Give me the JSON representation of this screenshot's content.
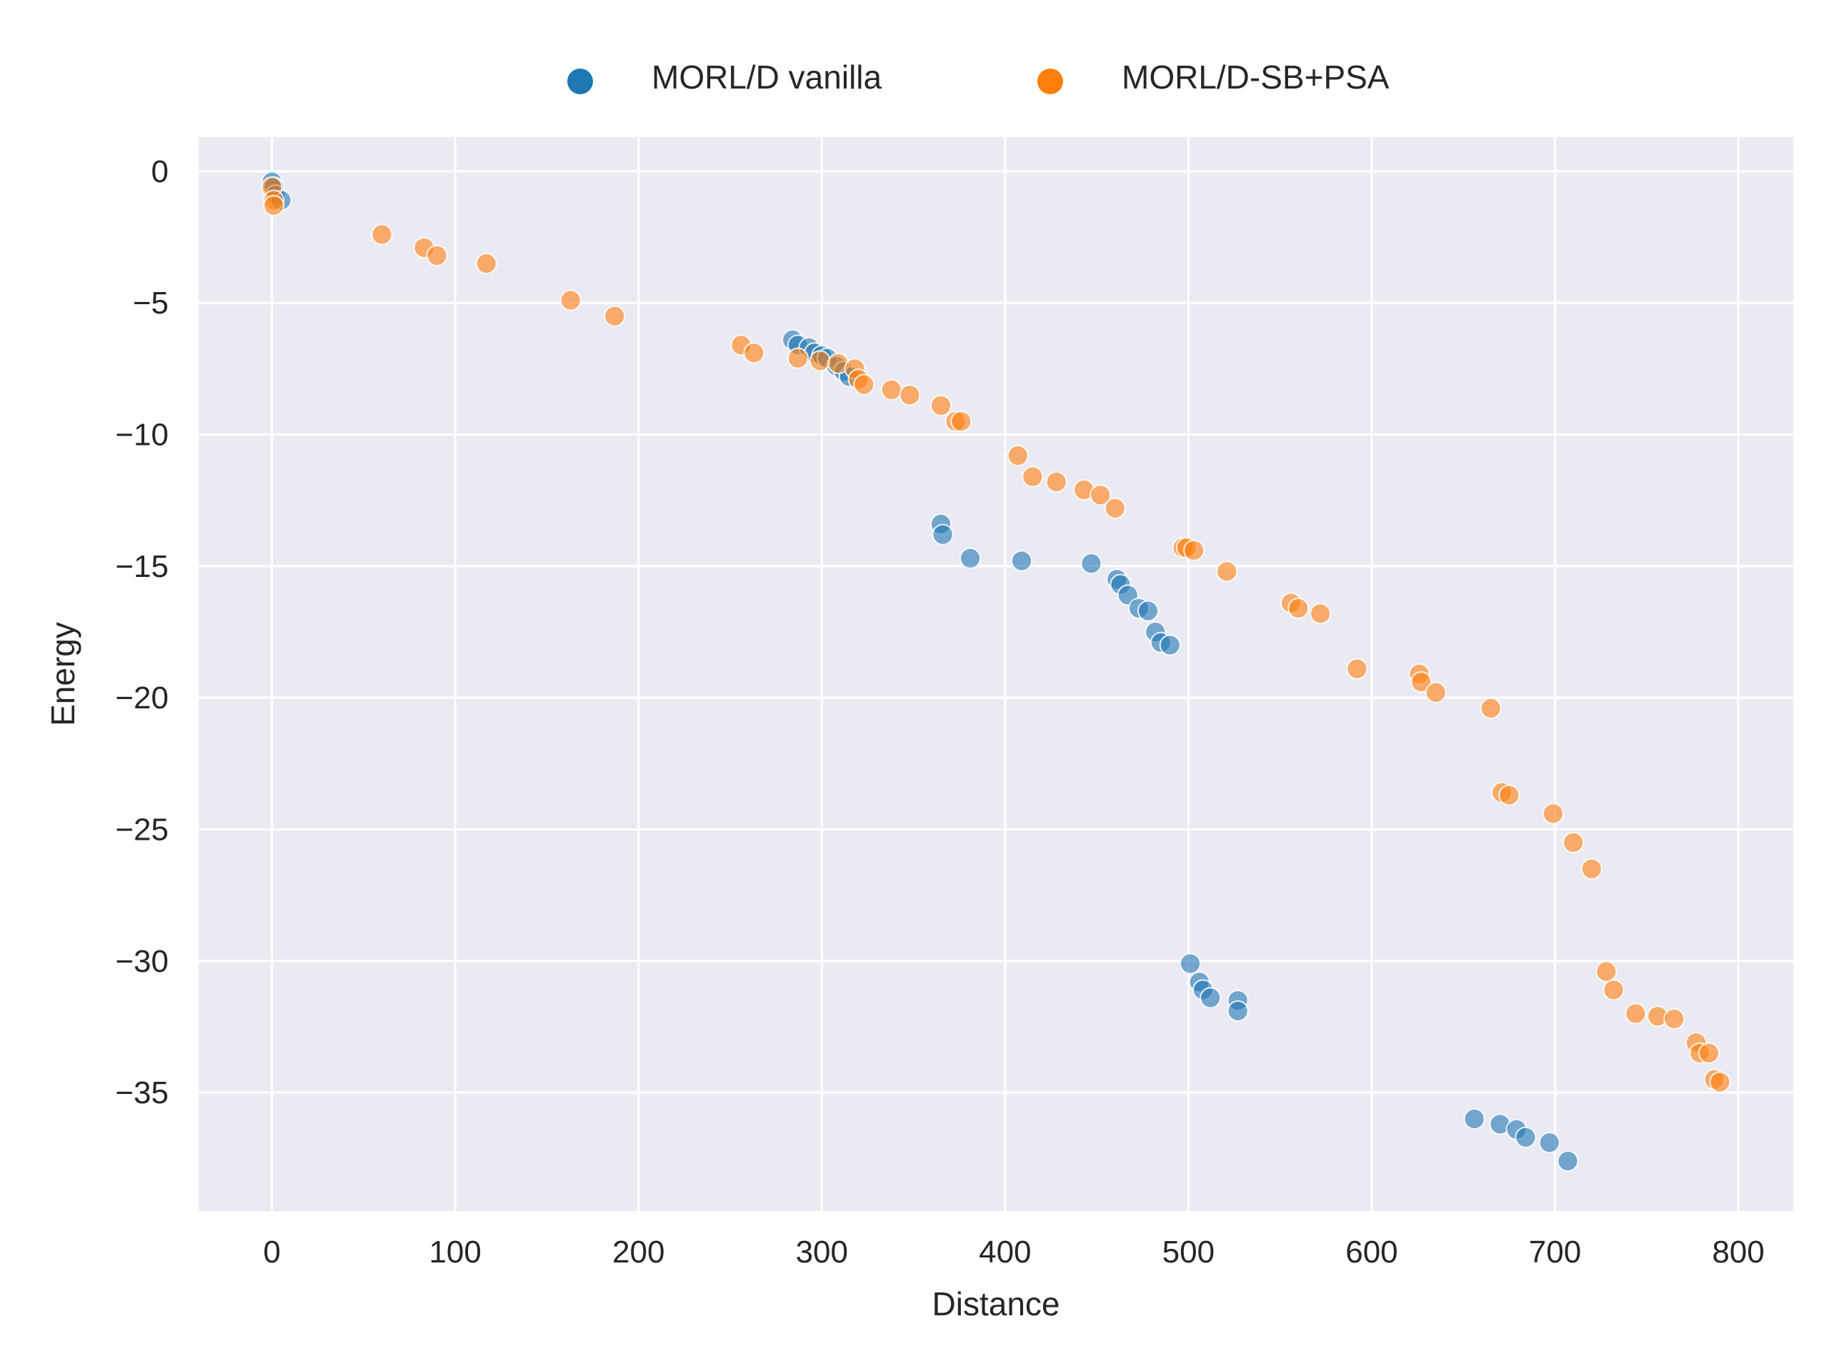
{
  "chart_data": {
    "type": "scatter",
    "title": "",
    "xlabel": "Distance",
    "ylabel": "Energy",
    "xlim": [
      -40,
      830
    ],
    "ylim": [
      -39.5,
      1.3
    ],
    "x_ticks": [
      0,
      100,
      200,
      300,
      400,
      500,
      600,
      700,
      800
    ],
    "y_ticks": [
      0,
      -5,
      -10,
      -15,
      -20,
      -25,
      -30,
      -35
    ],
    "x_tick_labels": [
      "0",
      "100",
      "200",
      "300",
      "400",
      "500",
      "600",
      "700",
      "800"
    ],
    "y_tick_labels": [
      "0",
      "−5",
      "−10",
      "−15",
      "−20",
      "−25",
      "−30",
      "−35"
    ],
    "grid": true,
    "legend_position": "top-center",
    "series": [
      {
        "name": "MORL/D vanilla",
        "color": "#1f77b4",
        "points": [
          [
            0,
            -0.4
          ],
          [
            1,
            -0.6
          ],
          [
            2,
            -0.9
          ],
          [
            5,
            -1.1
          ],
          [
            284,
            -6.4
          ],
          [
            287,
            -6.6
          ],
          [
            293,
            -6.7
          ],
          [
            296,
            -6.9
          ],
          [
            300,
            -7.0
          ],
          [
            303,
            -7.1
          ],
          [
            308,
            -7.4
          ],
          [
            312,
            -7.6
          ],
          [
            315,
            -7.8
          ],
          [
            365,
            -13.4
          ],
          [
            366,
            -13.8
          ],
          [
            381,
            -14.7
          ],
          [
            409,
            -14.8
          ],
          [
            447,
            -14.9
          ],
          [
            461,
            -15.5
          ],
          [
            463,
            -15.7
          ],
          [
            467,
            -16.1
          ],
          [
            473,
            -16.6
          ],
          [
            478,
            -16.7
          ],
          [
            482,
            -17.5
          ],
          [
            485,
            -17.9
          ],
          [
            490,
            -18.0
          ],
          [
            501,
            -30.1
          ],
          [
            506,
            -30.8
          ],
          [
            508,
            -31.1
          ],
          [
            512,
            -31.4
          ],
          [
            527,
            -31.5
          ],
          [
            527,
            -31.9
          ],
          [
            656,
            -36.0
          ],
          [
            670,
            -36.2
          ],
          [
            679,
            -36.4
          ],
          [
            684,
            -36.7
          ],
          [
            697,
            -36.9
          ],
          [
            707,
            -37.6
          ]
        ]
      },
      {
        "name": "MORL/D-SB+PSA",
        "color": "#ff7f0e",
        "points": [
          [
            0,
            -0.6
          ],
          [
            1,
            -1.1
          ],
          [
            1,
            -1.3
          ],
          [
            60,
            -2.4
          ],
          [
            83,
            -2.9
          ],
          [
            90,
            -3.2
          ],
          [
            117,
            -3.5
          ],
          [
            163,
            -4.9
          ],
          [
            187,
            -5.5
          ],
          [
            256,
            -6.6
          ],
          [
            263,
            -6.9
          ],
          [
            287,
            -7.1
          ],
          [
            299,
            -7.2
          ],
          [
            309,
            -7.3
          ],
          [
            318,
            -7.5
          ],
          [
            320,
            -7.9
          ],
          [
            323,
            -8.1
          ],
          [
            338,
            -8.3
          ],
          [
            348,
            -8.5
          ],
          [
            365,
            -8.9
          ],
          [
            373,
            -9.5
          ],
          [
            376,
            -9.5
          ],
          [
            407,
            -10.8
          ],
          [
            415,
            -11.6
          ],
          [
            428,
            -11.8
          ],
          [
            443,
            -12.1
          ],
          [
            452,
            -12.3
          ],
          [
            460,
            -12.8
          ],
          [
            497,
            -14.3
          ],
          [
            499,
            -14.3
          ],
          [
            503,
            -14.4
          ],
          [
            521,
            -15.2
          ],
          [
            556,
            -16.4
          ],
          [
            560,
            -16.6
          ],
          [
            572,
            -16.8
          ],
          [
            592,
            -18.9
          ],
          [
            626,
            -19.1
          ],
          [
            627,
            -19.4
          ],
          [
            635,
            -19.8
          ],
          [
            665,
            -20.4
          ],
          [
            671,
            -23.6
          ],
          [
            675,
            -23.7
          ],
          [
            699,
            -24.4
          ],
          [
            710,
            -25.5
          ],
          [
            720,
            -26.5
          ],
          [
            728,
            -30.4
          ],
          [
            732,
            -31.1
          ],
          [
            744,
            -32.0
          ],
          [
            756,
            -32.1
          ],
          [
            765,
            -32.2
          ],
          [
            777,
            -33.1
          ],
          [
            779,
            -33.5
          ],
          [
            784,
            -33.5
          ],
          [
            787,
            -34.5
          ],
          [
            790,
            -34.6
          ]
        ]
      }
    ]
  }
}
